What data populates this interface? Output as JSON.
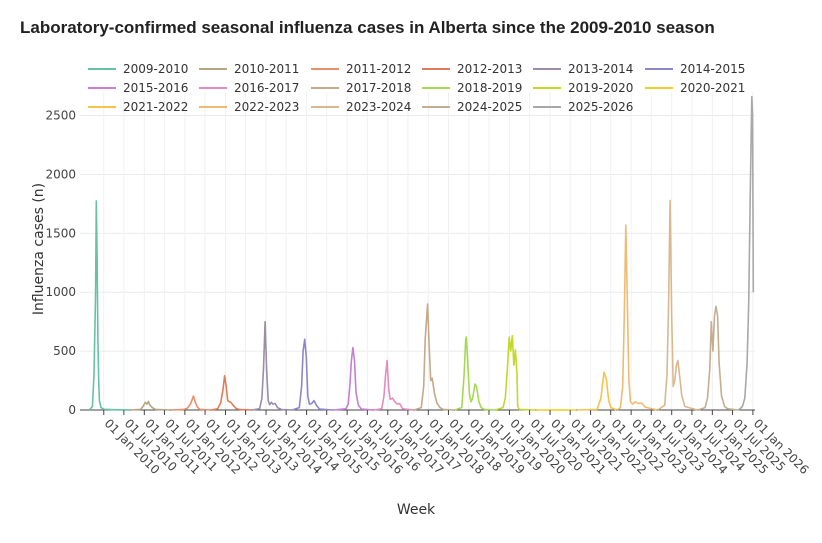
{
  "chart_data": {
    "type": "line",
    "title": "Laboratory-confirmed seasonal influenza cases in Alberta since the 2009-2010 season",
    "xlabel": "Week",
    "ylabel": "Influenza cases (n)",
    "ylim": [
      0,
      2700
    ],
    "xlim": [
      "2009-06-01",
      "2026-01-20"
    ],
    "yticks": [
      0,
      500,
      1000,
      1500,
      2000,
      2500
    ],
    "xticks": [
      "01 Jan 2010",
      "01 Jul 2010",
      "01 Jan 2011",
      "01 Jul 2011",
      "01 Jan 2012",
      "01 Jul 2012",
      "01 Jan 2013",
      "01 Jul 2013",
      "01 Jan 2014",
      "01 Jul 2014",
      "01 Jan 2015",
      "01 Jul 2015",
      "01 Jan 2016",
      "01 Jul 2016",
      "01 Jan 2017",
      "01 Jul 2017",
      "01 Jan 2018",
      "01 Jul 2018",
      "01 Jan 2019",
      "01 Jul 2019",
      "01 Jan 2020",
      "01 Jul 2020",
      "01 Jan 2021",
      "01 Jul 2021",
      "01 Jan 2022",
      "01 Jul 2022",
      "01 Jan 2023",
      "01 Jul 2023",
      "01 Jan 2024",
      "01 Jul 2024",
      "01 Jan 2025",
      "01 Jul 2025",
      "01 Jan 2026"
    ],
    "grid": true,
    "legend_position": "top",
    "series": [
      {
        "name": "2009-2010",
        "color": "#66c2a5",
        "points": [
          [
            "2009-08-24",
            0
          ],
          [
            "2009-09-21",
            30
          ],
          [
            "2009-10-05",
            300
          ],
          [
            "2009-10-19",
            1000
          ],
          [
            "2009-10-26",
            1775
          ],
          [
            "2009-11-02",
            1300
          ],
          [
            "2009-11-09",
            600
          ],
          [
            "2009-11-16",
            250
          ],
          [
            "2009-11-23",
            80
          ],
          [
            "2009-12-07",
            20
          ],
          [
            "2010-01-04",
            6
          ],
          [
            "2010-03-01",
            3
          ],
          [
            "2010-05-03",
            2
          ],
          [
            "2010-08-23",
            0
          ]
        ]
      },
      {
        "name": "2010-2011",
        "color": "#b5a580",
        "points": [
          [
            "2010-08-30",
            0
          ],
          [
            "2010-11-29",
            5
          ],
          [
            "2010-12-20",
            30
          ],
          [
            "2011-01-10",
            65
          ],
          [
            "2011-01-24",
            50
          ],
          [
            "2011-02-07",
            72
          ],
          [
            "2011-02-21",
            40
          ],
          [
            "2011-03-14",
            20
          ],
          [
            "2011-04-11",
            5
          ],
          [
            "2011-08-22",
            0
          ]
        ]
      },
      {
        "name": "2011-2012",
        "color": "#e8906b",
        "points": [
          [
            "2011-08-29",
            0
          ],
          [
            "2011-12-26",
            5
          ],
          [
            "2012-01-23",
            15
          ],
          [
            "2012-02-20",
            50
          ],
          [
            "2012-03-12",
            100
          ],
          [
            "2012-03-19",
            120
          ],
          [
            "2012-04-02",
            70
          ],
          [
            "2012-04-23",
            25
          ],
          [
            "2012-05-14",
            6
          ],
          [
            "2012-08-20",
            0
          ]
        ]
      },
      {
        "name": "2012-2013",
        "color": "#e07c5a",
        "points": [
          [
            "2012-08-27",
            0
          ],
          [
            "2012-10-22",
            10
          ],
          [
            "2012-11-19",
            60
          ],
          [
            "2012-12-10",
            180
          ],
          [
            "2012-12-24",
            290
          ],
          [
            "2013-01-07",
            200
          ],
          [
            "2013-01-21",
            80
          ],
          [
            "2013-02-04",
            70
          ],
          [
            "2013-02-18",
            65
          ],
          [
            "2013-03-11",
            40
          ],
          [
            "2013-04-08",
            12
          ],
          [
            "2013-05-13",
            3
          ],
          [
            "2013-08-19",
            0
          ]
        ]
      },
      {
        "name": "2013-2014",
        "color": "#9a8caa",
        "points": [
          [
            "2013-08-26",
            0
          ],
          [
            "2013-11-04",
            10
          ],
          [
            "2013-11-25",
            100
          ],
          [
            "2013-12-09",
            350
          ],
          [
            "2013-12-23",
            750
          ],
          [
            "2014-01-06",
            350
          ],
          [
            "2014-01-20",
            80
          ],
          [
            "2014-02-03",
            45
          ],
          [
            "2014-02-17",
            65
          ],
          [
            "2014-03-03",
            50
          ],
          [
            "2014-03-24",
            55
          ],
          [
            "2014-04-14",
            20
          ],
          [
            "2014-05-19",
            4
          ],
          [
            "2014-08-25",
            0
          ]
        ]
      },
      {
        "name": "2014-2015",
        "color": "#8d87c9",
        "points": [
          [
            "2014-08-25",
            0
          ],
          [
            "2014-10-27",
            20
          ],
          [
            "2014-11-17",
            200
          ],
          [
            "2014-12-01",
            500
          ],
          [
            "2014-12-15",
            600
          ],
          [
            "2014-12-29",
            450
          ],
          [
            "2015-01-12",
            120
          ],
          [
            "2015-01-26",
            50
          ],
          [
            "2015-02-16",
            55
          ],
          [
            "2015-03-09",
            80
          ],
          [
            "2015-03-30",
            40
          ],
          [
            "2015-04-27",
            8
          ],
          [
            "2015-08-24",
            0
          ]
        ]
      },
      {
        "name": "2015-2016",
        "color": "#c57fd3",
        "points": [
          [
            "2015-08-31",
            0
          ],
          [
            "2015-12-21",
            10
          ],
          [
            "2016-01-11",
            50
          ],
          [
            "2016-01-25",
            200
          ],
          [
            "2016-02-08",
            420
          ],
          [
            "2016-02-22",
            530
          ],
          [
            "2016-03-07",
            420
          ],
          [
            "2016-03-21",
            150
          ],
          [
            "2016-04-11",
            40
          ],
          [
            "2016-05-09",
            8
          ],
          [
            "2016-08-22",
            0
          ]
        ]
      },
      {
        "name": "2016-2017",
        "color": "#e48bc0",
        "points": [
          [
            "2016-08-29",
            0
          ],
          [
            "2016-11-07",
            10
          ],
          [
            "2016-11-28",
            120
          ],
          [
            "2016-12-12",
            300
          ],
          [
            "2016-12-26",
            420
          ],
          [
            "2017-01-09",
            180
          ],
          [
            "2017-01-23",
            90
          ],
          [
            "2017-02-13",
            100
          ],
          [
            "2017-03-06",
            70
          ],
          [
            "2017-03-27",
            50
          ],
          [
            "2017-04-17",
            55
          ],
          [
            "2017-05-15",
            10
          ],
          [
            "2017-08-21",
            0
          ]
        ]
      },
      {
        "name": "2017-2018",
        "color": "#c5a98a",
        "points": [
          [
            "2017-08-28",
            0
          ],
          [
            "2017-10-30",
            20
          ],
          [
            "2017-11-20",
            200
          ],
          [
            "2017-12-04",
            600
          ],
          [
            "2017-12-25",
            900
          ],
          [
            "2018-01-08",
            550
          ],
          [
            "2018-01-22",
            250
          ],
          [
            "2018-02-05",
            270
          ],
          [
            "2018-02-26",
            140
          ],
          [
            "2018-03-19",
            60
          ],
          [
            "2018-04-16",
            20
          ],
          [
            "2018-05-14",
            5
          ],
          [
            "2018-08-20",
            0
          ]
        ]
      },
      {
        "name": "2018-2019",
        "color": "#a6d854",
        "points": [
          [
            "2018-08-27",
            0
          ],
          [
            "2018-10-29",
            20
          ],
          [
            "2018-11-19",
            300
          ],
          [
            "2018-12-03",
            600
          ],
          [
            "2018-12-10",
            620
          ],
          [
            "2018-12-24",
            350
          ],
          [
            "2019-01-07",
            130
          ],
          [
            "2019-01-21",
            70
          ],
          [
            "2019-02-04",
            100
          ],
          [
            "2019-02-25",
            220
          ],
          [
            "2019-03-11",
            200
          ],
          [
            "2019-04-01",
            70
          ],
          [
            "2019-04-22",
            20
          ],
          [
            "2019-05-20",
            5
          ],
          [
            "2019-08-26",
            0
          ]
        ]
      },
      {
        "name": "2019-2020",
        "color": "#c4d82a",
        "points": [
          [
            "2019-08-26",
            0
          ],
          [
            "2019-11-04",
            20
          ],
          [
            "2019-11-25",
            100
          ],
          [
            "2019-12-16",
            380
          ],
          [
            "2019-12-30",
            620
          ],
          [
            "2020-01-13",
            500
          ],
          [
            "2020-01-27",
            630
          ],
          [
            "2020-02-10",
            380
          ],
          [
            "2020-02-24",
            510
          ],
          [
            "2020-03-09",
            300
          ],
          [
            "2020-03-16",
            30
          ],
          [
            "2020-03-30",
            5
          ],
          [
            "2020-08-24",
            0
          ]
        ]
      },
      {
        "name": "2020-2021",
        "color": "#f1cf2b",
        "points": [
          [
            "2020-08-31",
            0
          ],
          [
            "2021-03-01",
            1
          ],
          [
            "2021-08-23",
            0
          ]
        ]
      },
      {
        "name": "2021-2022",
        "color": "#f5c24a",
        "points": [
          [
            "2021-08-30",
            0
          ],
          [
            "2022-02-28",
            5
          ],
          [
            "2022-04-04",
            100
          ],
          [
            "2022-05-02",
            320
          ],
          [
            "2022-05-23",
            260
          ],
          [
            "2022-06-13",
            80
          ],
          [
            "2022-07-04",
            20
          ],
          [
            "2022-08-22",
            0
          ]
        ]
      },
      {
        "name": "2022-2023",
        "color": "#eebb73",
        "points": [
          [
            "2022-08-29",
            0
          ],
          [
            "2022-09-26",
            20
          ],
          [
            "2022-10-17",
            200
          ],
          [
            "2022-10-31",
            800
          ],
          [
            "2022-11-14",
            1570
          ],
          [
            "2022-11-28",
            900
          ],
          [
            "2022-12-12",
            250
          ],
          [
            "2022-12-26",
            70
          ],
          [
            "2023-01-16",
            50
          ],
          [
            "2023-02-06",
            70
          ],
          [
            "2023-03-06",
            55
          ],
          [
            "2023-04-03",
            60
          ],
          [
            "2023-05-08",
            25
          ],
          [
            "2023-08-21",
            0
          ]
        ]
      },
      {
        "name": "2023-2024",
        "color": "#dab88f",
        "points": [
          [
            "2023-08-28",
            0
          ],
          [
            "2023-10-30",
            40
          ],
          [
            "2023-11-20",
            300
          ],
          [
            "2023-12-04",
            900
          ],
          [
            "2023-12-18",
            1780
          ],
          [
            "2024-01-01",
            800
          ],
          [
            "2024-01-15",
            200
          ],
          [
            "2024-01-29",
            250
          ],
          [
            "2024-02-12",
            380
          ],
          [
            "2024-02-26",
            420
          ],
          [
            "2024-03-11",
            300
          ],
          [
            "2024-04-01",
            120
          ],
          [
            "2024-04-29",
            30
          ],
          [
            "2024-08-19",
            0
          ]
        ]
      },
      {
        "name": "2024-2025",
        "color": "#c4ae92",
        "points": [
          [
            "2024-08-26",
            0
          ],
          [
            "2024-10-28",
            20
          ],
          [
            "2024-11-18",
            100
          ],
          [
            "2024-12-09",
            350
          ],
          [
            "2024-12-23",
            750
          ],
          [
            "2025-01-06",
            500
          ],
          [
            "2025-01-20",
            800
          ],
          [
            "2025-02-03",
            880
          ],
          [
            "2025-02-17",
            800
          ],
          [
            "2025-03-03",
            400
          ],
          [
            "2025-03-24",
            120
          ],
          [
            "2025-04-21",
            30
          ],
          [
            "2025-05-19",
            10
          ],
          [
            "2025-08-25",
            0
          ]
        ]
      },
      {
        "name": "2025-2026",
        "color": "#a8a8a8",
        "points": [
          [
            "2025-08-25",
            0
          ],
          [
            "2025-09-29",
            30
          ],
          [
            "2025-10-20",
            100
          ],
          [
            "2025-11-10",
            400
          ],
          [
            "2025-11-24",
            900
          ],
          [
            "2025-12-08",
            1800
          ],
          [
            "2025-12-22",
            2660
          ],
          [
            "2025-12-29",
            2500
          ],
          [
            "2026-01-05",
            1000
          ]
        ]
      }
    ]
  }
}
